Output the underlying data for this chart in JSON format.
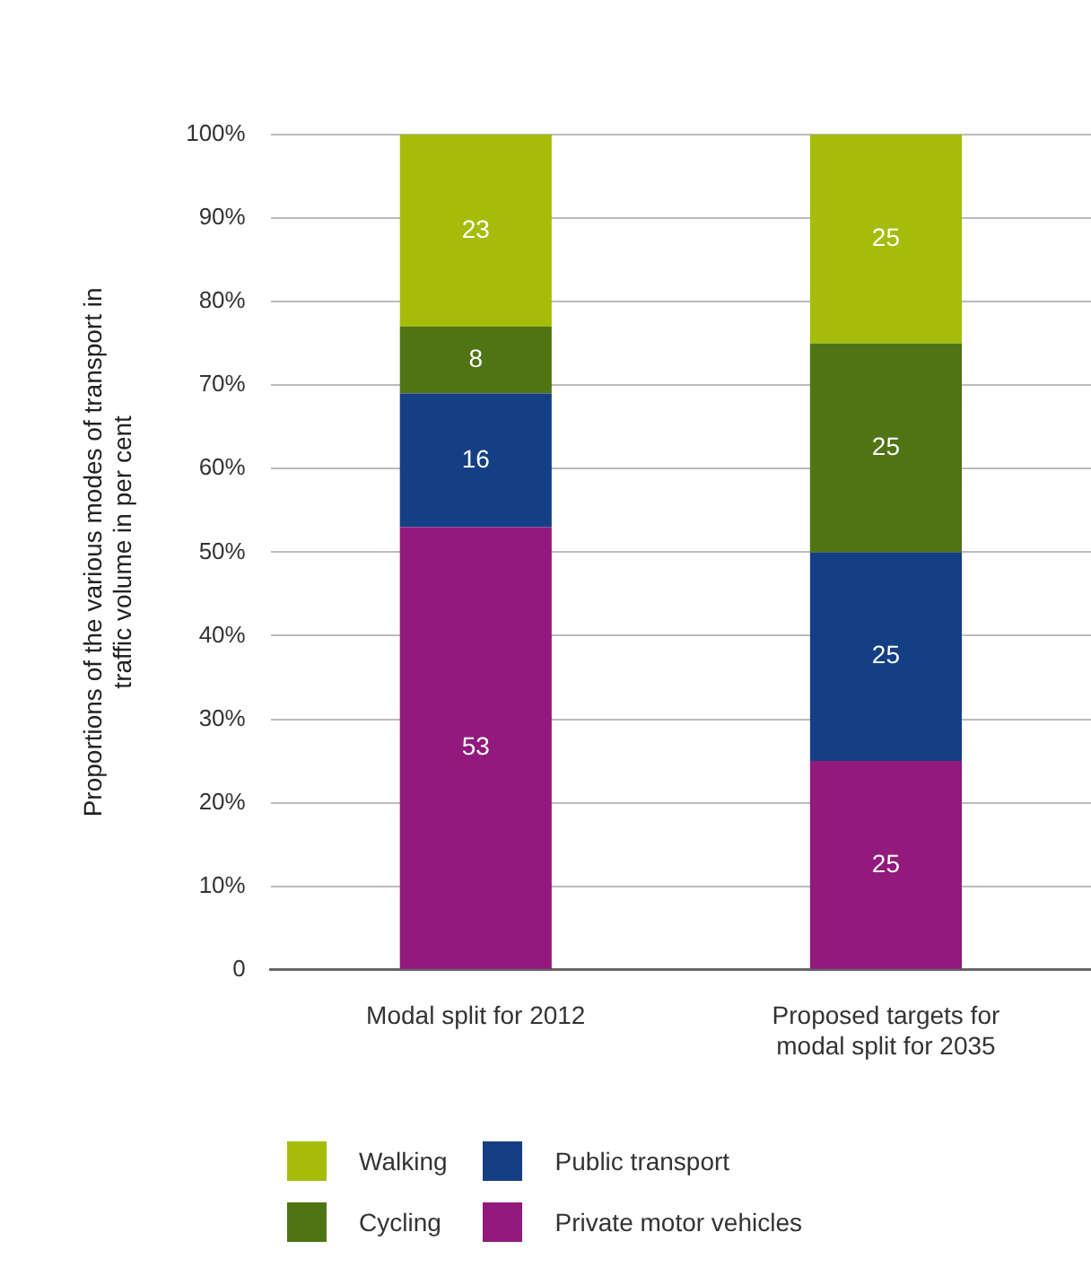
{
  "chart_data": {
    "type": "bar",
    "stacked": true,
    "ylabel": "Proportions of the various modes of transport in traffic volume in per cent",
    "categories": [
      "Modal split for 2012",
      "Proposed targets for modal split for 2035"
    ],
    "series": [
      {
        "name": "Private motor vehicles",
        "color": "#921a7c",
        "values": [
          53,
          25
        ]
      },
      {
        "name": "Public transport",
        "color": "#153f85",
        "values": [
          16,
          25
        ]
      },
      {
        "name": "Cycling",
        "color": "#4f7413",
        "values": [
          8,
          25
        ]
      },
      {
        "name": "Walking",
        "color": "#a5bd0a",
        "values": [
          23,
          25
        ]
      }
    ],
    "ylim": [
      0,
      100
    ],
    "yticks": [
      0,
      {
        "value": 10,
        "label": "10%"
      },
      {
        "value": 20,
        "label": "20%"
      },
      {
        "value": 30,
        "label": "30%"
      },
      {
        "value": 40,
        "label": "40%"
      },
      {
        "value": 50,
        "label": "50%"
      },
      {
        "value": 60,
        "label": "60%"
      },
      {
        "value": 70,
        "label": "70%"
      },
      {
        "value": 80,
        "label": "80%"
      },
      {
        "value": 90,
        "label": "90%"
      },
      {
        "value": 100,
        "label": "100%"
      }
    ],
    "grid": "y",
    "data_labels": true,
    "legend": "bottom left"
  }
}
